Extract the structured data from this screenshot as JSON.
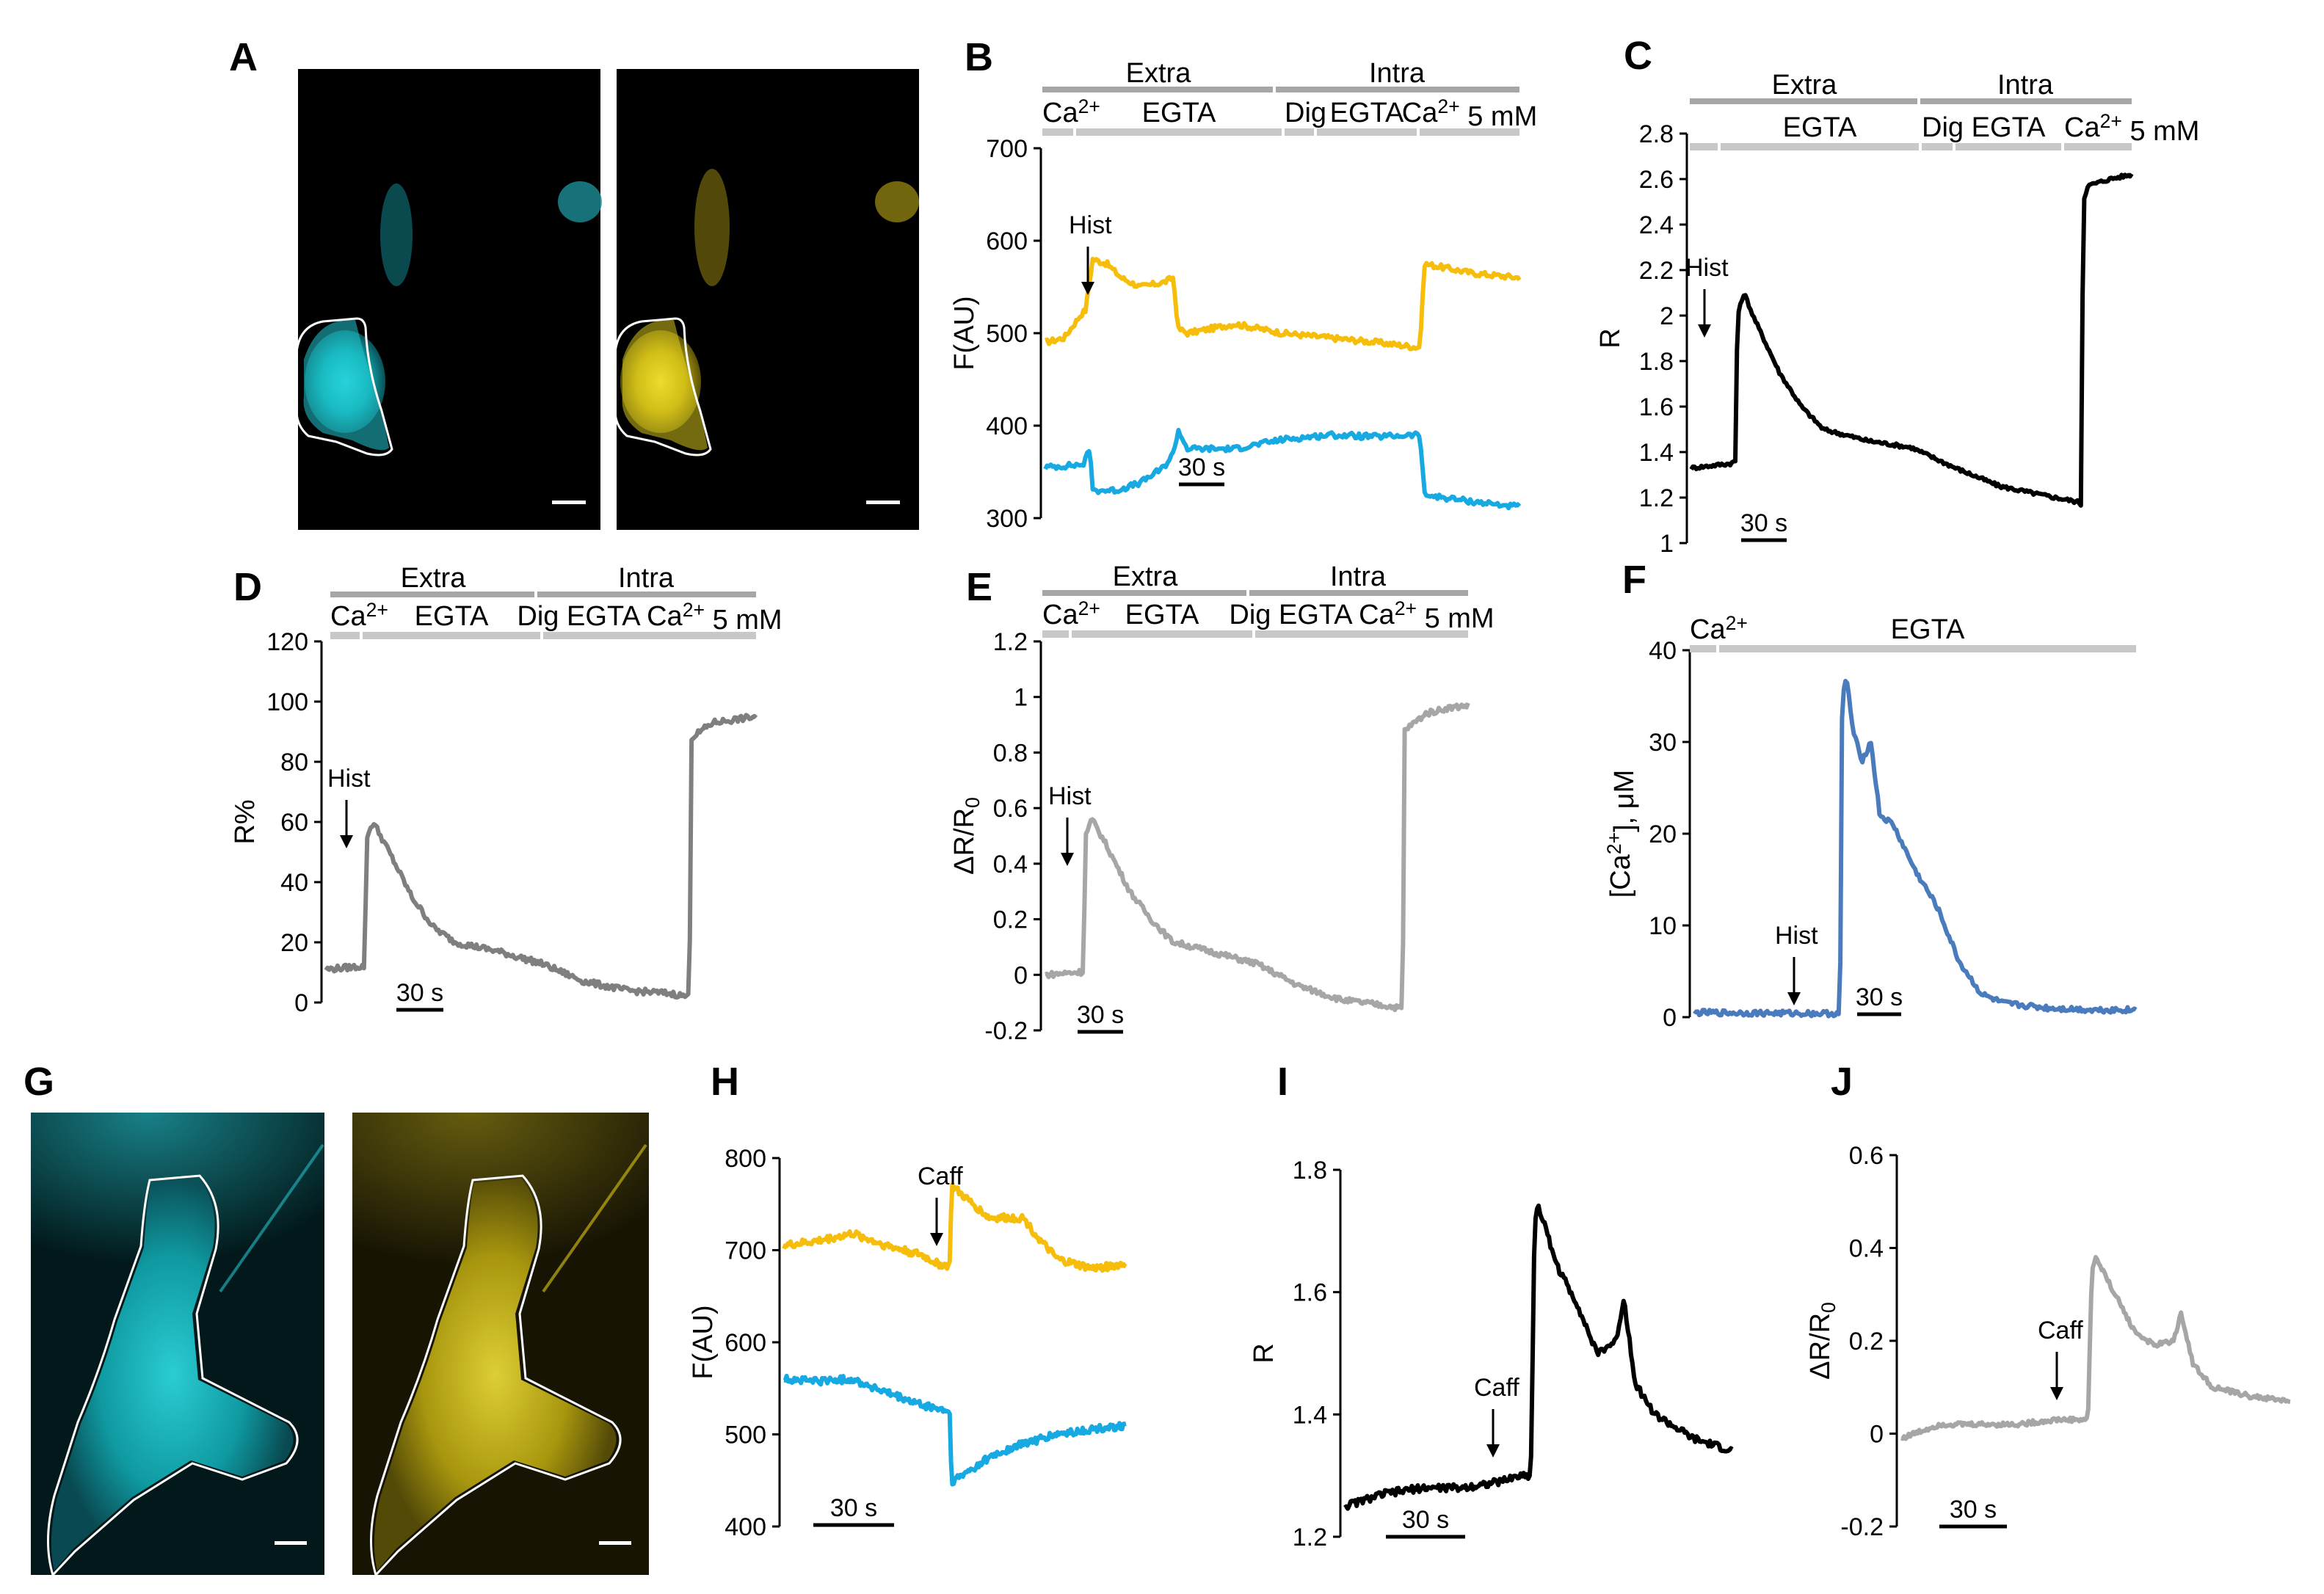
{
  "colors": {
    "yellow": "#f6be0b",
    "cyan": "#17a9e1",
    "black": "#000000",
    "gray": "#7f7f7f",
    "lightgray": "#a6a6a6",
    "blue": "#4a7bbd",
    "bar_dark": "#a6a6a6",
    "bar_light": "#c8c8c8"
  },
  "images": [
    {
      "label": "A",
      "scale_bar": true
    },
    {
      "label": "G",
      "scale_bar": true
    }
  ],
  "chart_data": [
    {
      "label": "B",
      "type": "line",
      "ylabel": "F(AU)",
      "ylim": [
        300,
        700
      ],
      "yticks": [
        300,
        400,
        500,
        600,
        700
      ],
      "top_bars": [
        "Extra",
        "Intra"
      ],
      "sub_bars": [
        "Ca2+",
        "EGTA",
        "Dig",
        "EGTA",
        "Ca2+ 5 mM"
      ],
      "annotation": "Hist",
      "scale_bar": "30 s",
      "series": [
        {
          "color": "yellow",
          "points": [
            [
              0,
              490
            ],
            [
              0.04,
              495
            ],
            [
              0.075,
              520
            ],
            [
              0.085,
              525
            ],
            [
              0.1,
              580
            ],
            [
              0.13,
              575
            ],
            [
              0.16,
              560
            ],
            [
              0.2,
              550
            ],
            [
              0.25,
              555
            ],
            [
              0.27,
              560
            ],
            [
              0.28,
              505
            ],
            [
              0.3,
              500
            ],
            [
              0.4,
              510
            ],
            [
              0.5,
              500
            ],
            [
              0.6,
              495
            ],
            [
              0.7,
              490
            ],
            [
              0.78,
              485
            ],
            [
              0.79,
              485
            ],
            [
              0.8,
              575
            ],
            [
              0.9,
              565
            ],
            [
              1,
              560
            ]
          ]
        },
        {
          "color": "cyan",
          "points": [
            [
              0,
              355
            ],
            [
              0.08,
              358
            ],
            [
              0.09,
              370
            ],
            [
              0.095,
              372
            ],
            [
              0.1,
              330
            ],
            [
              0.15,
              330
            ],
            [
              0.2,
              338
            ],
            [
              0.25,
              355
            ],
            [
              0.27,
              370
            ],
            [
              0.28,
              395
            ],
            [
              0.3,
              375
            ],
            [
              0.4,
              375
            ],
            [
              0.5,
              385
            ],
            [
              0.6,
              390
            ],
            [
              0.7,
              388
            ],
            [
              0.78,
              390
            ],
            [
              0.79,
              390
            ],
            [
              0.8,
              325
            ],
            [
              0.9,
              318
            ],
            [
              1,
              312
            ]
          ]
        }
      ]
    },
    {
      "label": "C",
      "type": "line",
      "ylabel": "R",
      "ylim": [
        1,
        2.8
      ],
      "yticks": [
        1,
        1.2,
        1.4,
        1.6,
        1.8,
        2,
        2.2,
        2.4,
        2.6,
        2.8
      ],
      "top_bars": [
        "Extra",
        "Intra"
      ],
      "sub_bars": [
        "",
        "EGTA",
        "Dig",
        "EGTA",
        "Ca2+ 5 mM"
      ],
      "annotation": "Hist",
      "scale_bar": "30 s",
      "series": [
        {
          "color": "black",
          "points": [
            [
              0,
              1.33
            ],
            [
              0.09,
              1.35
            ],
            [
              0.1,
              1.36
            ],
            [
              0.105,
              2.0
            ],
            [
              0.12,
              2.1
            ],
            [
              0.14,
              2.0
            ],
            [
              0.2,
              1.75
            ],
            [
              0.25,
              1.6
            ],
            [
              0.3,
              1.5
            ],
            [
              0.4,
              1.45
            ],
            [
              0.5,
              1.42
            ],
            [
              0.6,
              1.33
            ],
            [
              0.7,
              1.25
            ],
            [
              0.8,
              1.21
            ],
            [
              0.88,
              1.18
            ],
            [
              0.885,
              1.17
            ],
            [
              0.89,
              2.5
            ],
            [
              0.9,
              2.57
            ],
            [
              0.95,
              2.6
            ],
            [
              1,
              2.62
            ]
          ]
        }
      ]
    },
    {
      "label": "D",
      "type": "line",
      "ylabel": "R%",
      "ylim": [
        0,
        120
      ],
      "yticks": [
        0,
        20,
        40,
        60,
        80,
        100,
        120
      ],
      "top_bars": [
        "Extra",
        "Intra"
      ],
      "sub_bars": [
        "Ca2+",
        "EGTA",
        "Dig EGTA Ca2+ 5 mM"
      ],
      "annotation": "Hist",
      "scale_bar": "30 s",
      "series": [
        {
          "color": "gray",
          "points": [
            [
              0,
              11
            ],
            [
              0.08,
              12
            ],
            [
              0.09,
              12
            ],
            [
              0.095,
              55
            ],
            [
              0.11,
              60
            ],
            [
              0.14,
              52
            ],
            [
              0.2,
              35
            ],
            [
              0.25,
              25
            ],
            [
              0.3,
              20
            ],
            [
              0.4,
              17
            ],
            [
              0.5,
              13
            ],
            [
              0.6,
              7
            ],
            [
              0.7,
              4
            ],
            [
              0.8,
              3
            ],
            [
              0.84,
              2
            ],
            [
              0.845,
              2
            ],
            [
              0.85,
              88
            ],
            [
              0.9,
              93
            ],
            [
              0.95,
              94
            ],
            [
              1,
              95
            ]
          ]
        }
      ]
    },
    {
      "label": "E",
      "type": "line",
      "ylabel": "ΔR/R0",
      "ylim": [
        -0.2,
        1.2
      ],
      "yticks": [
        -0.2,
        0,
        0.2,
        0.4,
        0.6,
        0.8,
        1,
        1.2
      ],
      "top_bars": [
        "Extra",
        "Intra"
      ],
      "sub_bars": [
        "Ca2+",
        "EGTA",
        "Dig EGTA Ca2+ 5 mM"
      ],
      "annotation": "Hist",
      "scale_bar": "30 s",
      "series": [
        {
          "color": "lightgray",
          "points": [
            [
              0,
              0
            ],
            [
              0.08,
              0.01
            ],
            [
              0.09,
              0.01
            ],
            [
              0.095,
              0.5
            ],
            [
              0.11,
              0.56
            ],
            [
              0.14,
              0.48
            ],
            [
              0.2,
              0.3
            ],
            [
              0.25,
              0.2
            ],
            [
              0.3,
              0.12
            ],
            [
              0.4,
              0.08
            ],
            [
              0.5,
              0.04
            ],
            [
              0.6,
              -0.04
            ],
            [
              0.7,
              -0.09
            ],
            [
              0.8,
              -0.11
            ],
            [
              0.84,
              -0.12
            ],
            [
              0.845,
              -0.12
            ],
            [
              0.85,
              0.88
            ],
            [
              0.9,
              0.94
            ],
            [
              0.95,
              0.96
            ],
            [
              1,
              0.97
            ]
          ]
        }
      ]
    },
    {
      "label": "F",
      "type": "line",
      "ylabel": "[Ca2+], μM",
      "ylim": [
        0,
        40
      ],
      "yticks": [
        0,
        10,
        20,
        30,
        40
      ],
      "top_bars": [],
      "sub_bars": [
        "Ca2+",
        "EGTA"
      ],
      "annotation": "Hist",
      "scale_bar": "30 s",
      "series": [
        {
          "color": "blue",
          "points": [
            [
              0,
              0.5
            ],
            [
              0.3,
              0.4
            ],
            [
              0.33,
              0.4
            ],
            [
              0.335,
              35
            ],
            [
              0.345,
              37
            ],
            [
              0.36,
              31
            ],
            [
              0.38,
              28
            ],
            [
              0.4,
              30
            ],
            [
              0.42,
              22
            ],
            [
              0.45,
              21
            ],
            [
              0.5,
              16
            ],
            [
              0.55,
              12
            ],
            [
              0.6,
              6
            ],
            [
              0.65,
              2.5
            ],
            [
              0.7,
              1.5
            ],
            [
              0.8,
              1
            ],
            [
              0.9,
              0.8
            ],
            [
              1,
              0.8
            ]
          ]
        }
      ]
    },
    {
      "label": "H",
      "type": "line",
      "ylabel": "F(AU)",
      "ylim": [
        400,
        800
      ],
      "yticks": [
        400,
        500,
        600,
        700,
        800
      ],
      "top_bars": [],
      "sub_bars": [],
      "annotation": "Caff",
      "scale_bar": "30 s",
      "series": [
        {
          "color": "yellow",
          "points": [
            [
              0,
              705
            ],
            [
              0.1,
              710
            ],
            [
              0.2,
              718
            ],
            [
              0.3,
              705
            ],
            [
              0.4,
              695
            ],
            [
              0.45,
              685
            ],
            [
              0.48,
              683
            ],
            [
              0.485,
              685
            ],
            [
              0.49,
              770
            ],
            [
              0.52,
              760
            ],
            [
              0.6,
              735
            ],
            [
              0.7,
              735
            ],
            [
              0.75,
              710
            ],
            [
              0.8,
              690
            ],
            [
              0.9,
              680
            ],
            [
              1,
              685
            ]
          ]
        },
        {
          "color": "cyan",
          "points": [
            [
              0,
              560
            ],
            [
              0.1,
              558
            ],
            [
              0.2,
              560
            ],
            [
              0.3,
              545
            ],
            [
              0.4,
              532
            ],
            [
              0.48,
              525
            ],
            [
              0.485,
              520
            ],
            [
              0.49,
              448
            ],
            [
              0.52,
              455
            ],
            [
              0.6,
              475
            ],
            [
              0.7,
              490
            ],
            [
              0.8,
              500
            ],
            [
              0.9,
              505
            ],
            [
              1,
              510
            ]
          ]
        }
      ]
    },
    {
      "label": "I",
      "type": "line",
      "ylabel": "R",
      "ylim": [
        1.2,
        1.8
      ],
      "yticks": [
        1.2,
        1.4,
        1.6,
        1.8
      ],
      "top_bars": [],
      "sub_bars": [],
      "annotation": "Caff",
      "scale_bar": "30 s",
      "series": [
        {
          "color": "black",
          "points": [
            [
              0,
              1.25
            ],
            [
              0.1,
              1.27
            ],
            [
              0.2,
              1.28
            ],
            [
              0.3,
              1.28
            ],
            [
              0.4,
              1.29
            ],
            [
              0.45,
              1.3
            ],
            [
              0.48,
              1.3
            ],
            [
              0.49,
              1.72
            ],
            [
              0.5,
              1.74
            ],
            [
              0.55,
              1.64
            ],
            [
              0.6,
              1.58
            ],
            [
              0.65,
              1.5
            ],
            [
              0.7,
              1.52
            ],
            [
              0.72,
              1.59
            ],
            [
              0.75,
              1.45
            ],
            [
              0.8,
              1.4
            ],
            [
              0.9,
              1.36
            ],
            [
              1,
              1.34
            ]
          ]
        }
      ]
    },
    {
      "label": "J",
      "type": "line",
      "ylabel": "ΔR/R0",
      "ylim": [
        -0.2,
        0.6
      ],
      "yticks": [
        -0.2,
        0,
        0.2,
        0.4,
        0.6
      ],
      "top_bars": [],
      "sub_bars": [],
      "annotation": "Caff",
      "scale_bar": "30 s",
      "series": [
        {
          "color": "lightgray",
          "points": [
            [
              0,
              -0.01
            ],
            [
              0.1,
              0.02
            ],
            [
              0.2,
              0.02
            ],
            [
              0.3,
              0.02
            ],
            [
              0.4,
              0.03
            ],
            [
              0.48,
              0.03
            ],
            [
              0.49,
              0.35
            ],
            [
              0.5,
              0.38
            ],
            [
              0.55,
              0.3
            ],
            [
              0.6,
              0.22
            ],
            [
              0.65,
              0.19
            ],
            [
              0.7,
              0.2
            ],
            [
              0.72,
              0.26
            ],
            [
              0.75,
              0.15
            ],
            [
              0.8,
              0.1
            ],
            [
              0.9,
              0.08
            ],
            [
              1,
              0.07
            ]
          ]
        }
      ]
    }
  ]
}
